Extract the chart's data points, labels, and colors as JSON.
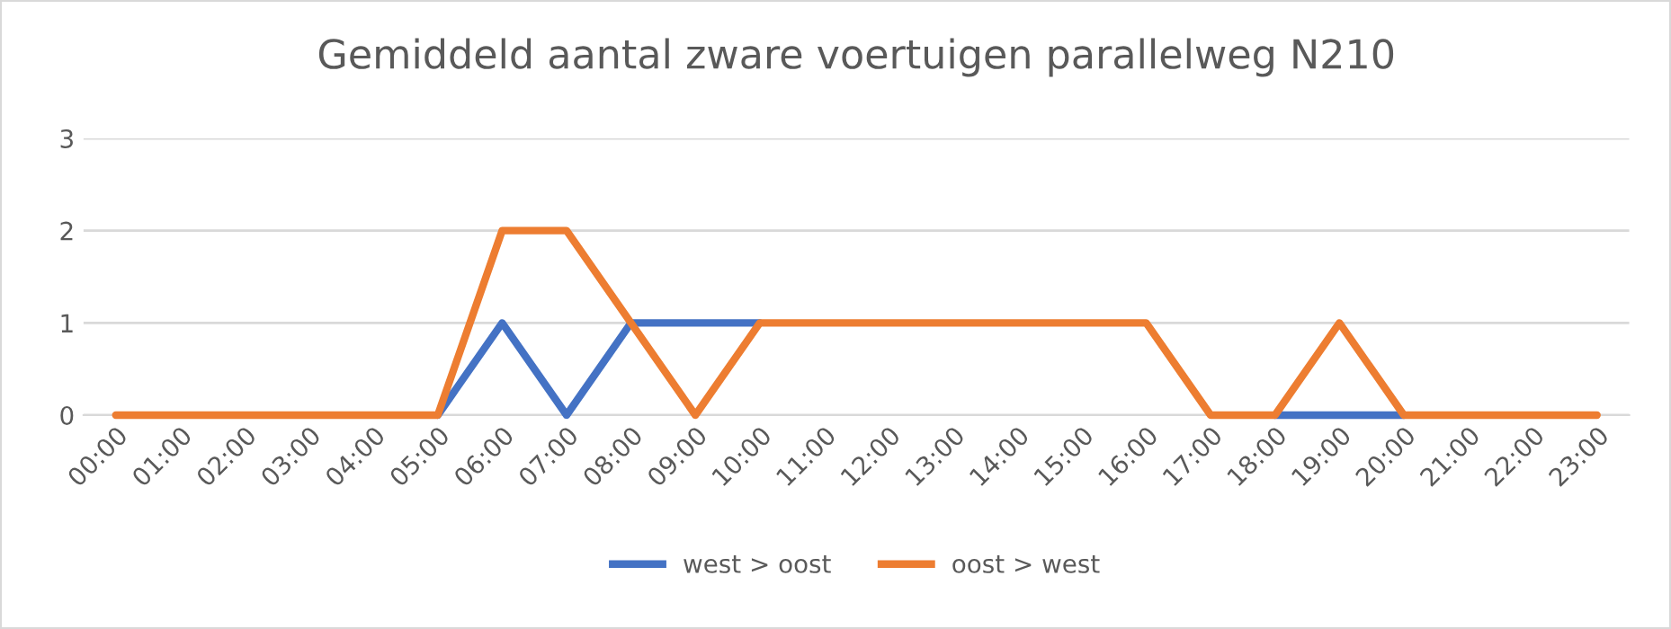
{
  "chart_data": {
    "type": "line",
    "title": "Gemiddeld aantal zware voertuigen parallelweg N210",
    "categories": [
      "00:00",
      "01:00",
      "02:00",
      "03:00",
      "04:00",
      "05:00",
      "06:00",
      "07:00",
      "08:00",
      "09:00",
      "10:00",
      "11:00",
      "12:00",
      "13:00",
      "14:00",
      "15:00",
      "16:00",
      "17:00",
      "18:00",
      "19:00",
      "20:00",
      "21:00",
      "22:00",
      "23:00"
    ],
    "series": [
      {
        "name": "west > oost",
        "color": "#4472c4",
        "values": [
          null,
          null,
          null,
          null,
          null,
          0,
          1,
          0,
          1,
          1,
          1,
          null,
          null,
          null,
          null,
          null,
          null,
          null,
          0,
          0,
          0,
          null,
          null,
          null
        ]
      },
      {
        "name": "oost > west",
        "color": "#ed7d31",
        "values": [
          0,
          0,
          0,
          0,
          0,
          0,
          2,
          2,
          1,
          0,
          1,
          1,
          1,
          1,
          1,
          1,
          1,
          0,
          0,
          1,
          0,
          0,
          0,
          0
        ]
      }
    ],
    "ylim": [
      0,
      3
    ],
    "yticks": [
      0,
      1,
      2,
      3
    ],
    "grid": "y",
    "legend": "bottom"
  }
}
